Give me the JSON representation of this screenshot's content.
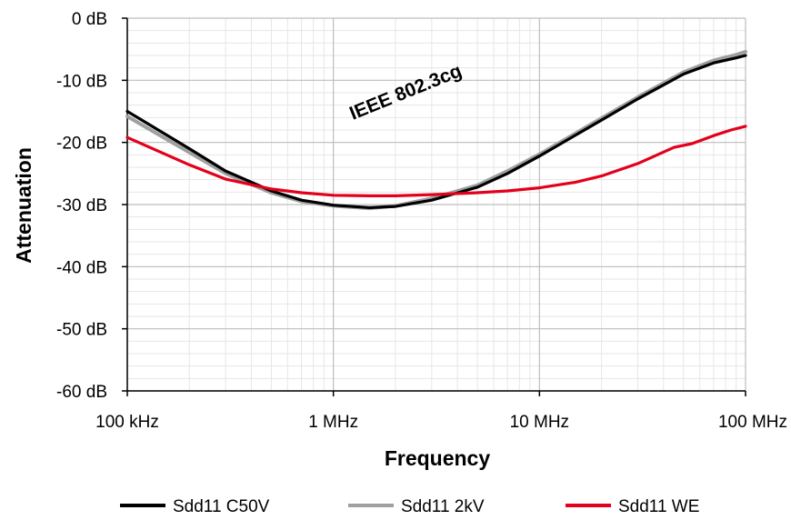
{
  "chart_data": {
    "type": "line",
    "xlabel": "Frequency",
    "ylabel": "Attenuation",
    "x_scale": "log",
    "xlim_hz": [
      100000,
      100000000
    ],
    "ylim_db": [
      -60,
      0
    ],
    "x_ticks": [
      {
        "value": 100000,
        "label": "100 kHz"
      },
      {
        "value": 1000000,
        "label": "1 MHz"
      },
      {
        "value": 10000000,
        "label": "10 MHz"
      },
      {
        "value": 100000000,
        "label": "100 MHz"
      }
    ],
    "y_ticks": [
      {
        "value": 0,
        "label": "0 dB"
      },
      {
        "value": -10,
        "label": "-10 dB"
      },
      {
        "value": -20,
        "label": "-20 dB"
      },
      {
        "value": -30,
        "label": "-30 dB"
      },
      {
        "value": -40,
        "label": "-40 dB"
      },
      {
        "value": -50,
        "label": "-50 dB"
      },
      {
        "value": -60,
        "label": "-60 dB"
      }
    ],
    "grid": true,
    "legend_position": "bottom",
    "annotation": "IEEE 802.3cg",
    "series": [
      {
        "name": "Sdd11 C50V",
        "color": "#000000",
        "points": [
          [
            100000,
            -15.0
          ],
          [
            200000,
            -21.0
          ],
          [
            300000,
            -24.6
          ],
          [
            500000,
            -27.8
          ],
          [
            700000,
            -29.3
          ],
          [
            1000000,
            -30.1
          ],
          [
            1500000,
            -30.5
          ],
          [
            2000000,
            -30.3
          ],
          [
            3000000,
            -29.3
          ],
          [
            5000000,
            -27.2
          ],
          [
            7000000,
            -25.0
          ],
          [
            10000000,
            -22.2
          ],
          [
            20000000,
            -16.4
          ],
          [
            30000000,
            -13.0
          ],
          [
            50000000,
            -9.0
          ],
          [
            70000000,
            -7.2
          ],
          [
            90000000,
            -6.4
          ],
          [
            100000000,
            -6.0
          ]
        ]
      },
      {
        "name": "Sdd11 2kV",
        "color": "#a0a0a0",
        "points": [
          [
            100000,
            -15.8
          ],
          [
            200000,
            -21.6
          ],
          [
            300000,
            -25.0
          ],
          [
            500000,
            -28.1
          ],
          [
            700000,
            -29.5
          ],
          [
            1000000,
            -30.2
          ],
          [
            1500000,
            -30.6
          ],
          [
            2000000,
            -30.2
          ],
          [
            3000000,
            -29.0
          ],
          [
            5000000,
            -26.9
          ],
          [
            7000000,
            -24.6
          ],
          [
            10000000,
            -21.9
          ],
          [
            20000000,
            -16.1
          ],
          [
            30000000,
            -12.7
          ],
          [
            50000000,
            -8.7
          ],
          [
            70000000,
            -6.8
          ],
          [
            90000000,
            -5.9
          ],
          [
            100000000,
            -5.4
          ]
        ]
      },
      {
        "name": "Sdd11 WE",
        "color": "#e3001b",
        "points": [
          [
            100000,
            -19.2
          ],
          [
            200000,
            -23.6
          ],
          [
            300000,
            -25.9
          ],
          [
            500000,
            -27.5
          ],
          [
            700000,
            -28.1
          ],
          [
            1000000,
            -28.5
          ],
          [
            1500000,
            -28.6
          ],
          [
            2000000,
            -28.6
          ],
          [
            3000000,
            -28.4
          ],
          [
            5000000,
            -28.1
          ],
          [
            7000000,
            -27.8
          ],
          [
            10000000,
            -27.3
          ],
          [
            15000000,
            -26.4
          ],
          [
            20000000,
            -25.4
          ],
          [
            30000000,
            -23.4
          ],
          [
            45000000,
            -20.8
          ],
          [
            55000000,
            -20.2
          ],
          [
            70000000,
            -18.9
          ],
          [
            85000000,
            -18.0
          ],
          [
            100000000,
            -17.4
          ]
        ]
      }
    ]
  }
}
